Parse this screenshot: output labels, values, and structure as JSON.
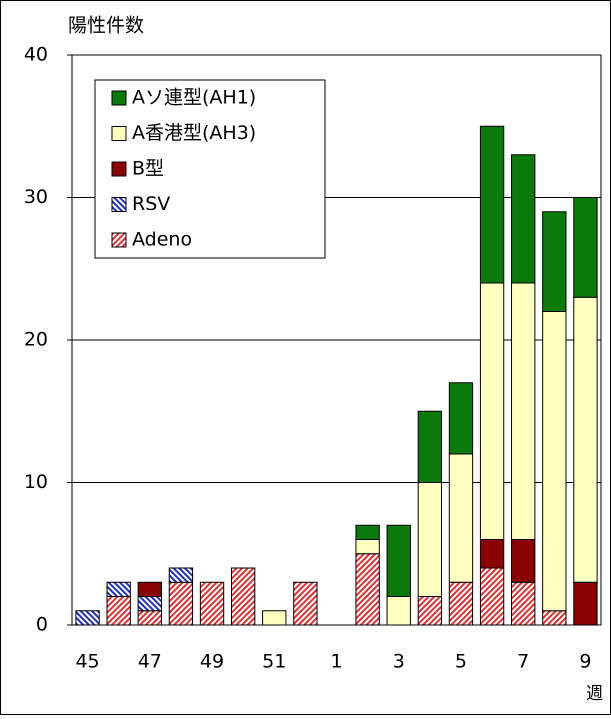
{
  "chart_data": {
    "type": "bar",
    "stacked": true,
    "y_label": "陽性件数",
    "x_label": "週",
    "categories": [
      "45",
      null,
      "47",
      null,
      "49",
      null,
      "51",
      null,
      "1",
      null,
      "3",
      null,
      "5",
      null,
      "7",
      null,
      "9"
    ],
    "series": [
      {
        "name": "Aソ連型(AH1)",
        "color": "#0a7a0a",
        "pattern": "solid",
        "values": [
          0,
          0,
          0,
          0,
          0,
          0,
          0,
          0,
          0,
          1,
          5,
          5,
          5,
          11,
          9,
          7,
          7
        ]
      },
      {
        "name": "A香港型(AH3)",
        "color": "#ffffc0",
        "pattern": "solid",
        "values": [
          0,
          0,
          0,
          0,
          0,
          0,
          1,
          0,
          0,
          1,
          2,
          8,
          9,
          18,
          18,
          21,
          20
        ]
      },
      {
        "name": "B型",
        "color": "#8b0000",
        "pattern": "solid",
        "values": [
          0,
          0,
          1,
          0,
          0,
          0,
          0,
          0,
          0,
          0,
          0,
          0,
          0,
          2,
          3,
          0,
          3
        ]
      },
      {
        "name": "RSV",
        "color": "#2030c0",
        "pattern": "hatch",
        "values": [
          1,
          1,
          1,
          1,
          0,
          0,
          0,
          0,
          0,
          0,
          0,
          0,
          0,
          0,
          0,
          0,
          0
        ]
      },
      {
        "name": "Adeno",
        "color": "#e03030",
        "pattern": "hatch",
        "values": [
          0,
          2,
          1,
          3,
          3,
          4,
          0,
          3,
          0,
          5,
          0,
          2,
          3,
          4,
          3,
          1,
          0
        ]
      }
    ],
    "ylim": [
      0,
      40
    ],
    "yticks": [
      0,
      10,
      20,
      30,
      40
    ],
    "grid": true,
    "legend": "top-left"
  }
}
